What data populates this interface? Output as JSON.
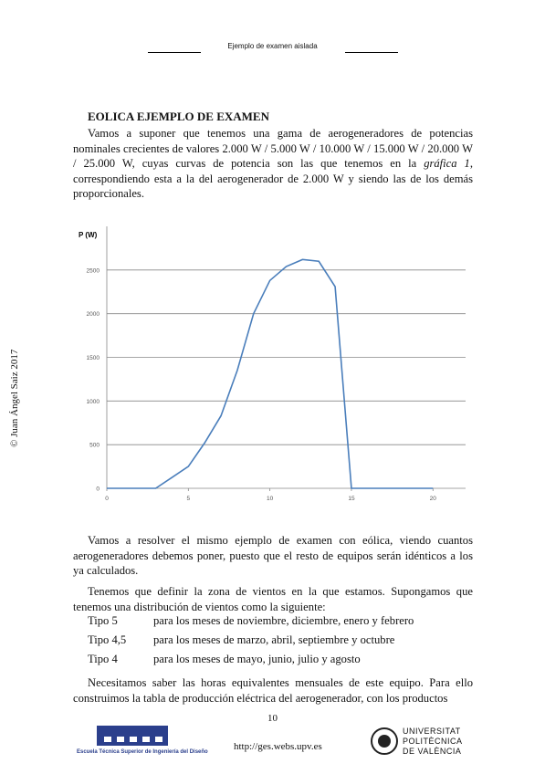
{
  "header": {
    "title": "Ejemplo de examen aislada"
  },
  "watermark": "© Juan Ángel Saiz 2017",
  "title": "EOLICA EJEMPLO DE EXAMEN",
  "paragraph_1": {
    "before": "Vamos a suponer que tenemos una gama de aerogeneradores de potencias nominales crecientes de valores 2.000 W / 5.000 W / 10.000 W / 15.000 W / 20.000 W / 25.000 W, cuyas curvas de potencia son las que tenemos en la ",
    "emphasis": "gráfica 1",
    "after": ", correspondiendo esta a la del aerogenerador de 2.000 W y siendo las de los demás proporcionales."
  },
  "chart_data": {
    "type": "line",
    "y_label": "P (W)",
    "x": [
      0,
      1,
      2,
      3,
      4,
      5,
      6,
      7,
      8,
      9,
      10,
      11,
      12,
      13,
      14,
      15,
      16,
      17,
      18,
      19,
      20
    ],
    "series": [
      {
        "name": "P",
        "color": "#4a7ebb",
        "values": [
          0,
          0,
          0,
          0,
          125,
          250,
          520,
          830,
          1350,
          2000,
          2380,
          2540,
          2620,
          2600,
          2310,
          0,
          0,
          0,
          0,
          0,
          0
        ]
      }
    ],
    "xlim": [
      0,
      22
    ],
    "xticks": [
      0,
      5,
      10,
      15,
      20
    ],
    "ylim": [
      0,
      3000
    ],
    "yticks": [
      0,
      500,
      1000,
      1500,
      2000,
      2500
    ],
    "grid": true
  },
  "paragraph_2": "Vamos a resolver el mismo ejemplo de examen con eólica, viendo cuantos aerogeneradores debemos poner, puesto que el resto de equipos serán idénticos a los ya calculados.",
  "paragraph_3": "Tenemos que definir la zona de vientos en la que estamos. Supongamos que tenemos una distribución de vientos como la siguiente:",
  "list": [
    [
      "Tipo 5",
      "para los meses de noviembre, diciembre, enero y febrero"
    ],
    [
      "Tipo 4,5",
      "para los meses de marzo, abril, septiembre y octubre"
    ],
    [
      "Tipo 4",
      "para los meses de mayo, junio, julio y agosto"
    ]
  ],
  "paragraph_4": "Necesitamos saber las horas equivalentes mensuales de este equipo. Para ello construimos la tabla de producción eléctrica del aerogenerador, con los productos",
  "footer": {
    "page": "10",
    "url": "http://ges.webs.upv.es",
    "school": "Escuela Técnica Superior de Ingeniería del Diseño",
    "university": [
      "UNIVERSITAT",
      "POLITÈCNICA",
      "DE VALÈNCIA"
    ]
  }
}
